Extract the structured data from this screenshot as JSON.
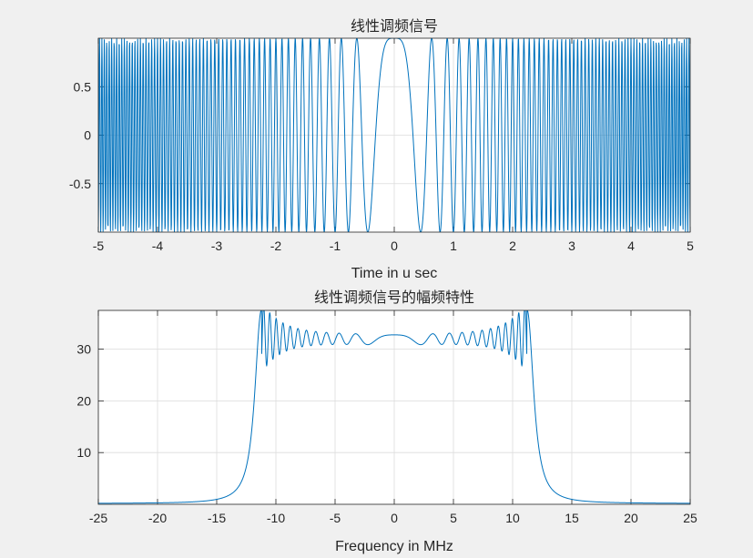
{
  "colors": {
    "figure_bg": "#f0f0f0",
    "axes_bg": "#ffffff",
    "line": "#0072bd",
    "grid": "#dcdcdc",
    "axis": "#262626"
  },
  "chart_data": [
    {
      "type": "line",
      "title": "线性调频信号",
      "xlabel": "Time in u sec",
      "ylabel": "",
      "xlim": [
        -5,
        5
      ],
      "ylim": [
        -1,
        1
      ],
      "xticks": [
        -5,
        -4,
        -3,
        -2,
        -1,
        0,
        1,
        2,
        3,
        4,
        5
      ],
      "yticks": [
        -0.5,
        0,
        0.5
      ],
      "grid": true,
      "series": [
        {
          "signal": "cos(pi*k*t^2)",
          "t_range_us": [
            -5,
            5
          ],
          "chirp_rate_mhz_per_us": 5,
          "samples": 2001
        }
      ]
    },
    {
      "type": "line",
      "title": "线性调频信号的幅频特性",
      "xlabel": "Frequency in MHz",
      "ylabel": "",
      "xlim": [
        -25,
        25
      ],
      "ylim": [
        0,
        37.5
      ],
      "xticks": [
        -25,
        -20,
        -15,
        -10,
        -5,
        0,
        5,
        10,
        15,
        20,
        25
      ],
      "yticks": [
        10,
        20,
        30
      ],
      "grid": true,
      "series": [
        {
          "description_points_freq_mhz": [
            -25,
            -20,
            -15,
            -13,
            -12,
            -11.2,
            -10.5,
            -10,
            -5,
            0,
            5,
            10,
            10.5,
            11.2,
            12,
            13,
            15,
            20,
            25
          ],
          "description_points_mag": [
            0.2,
            0.6,
            2.3,
            7,
            16,
            37.5,
            27.5,
            33,
            31.5,
            32,
            31.5,
            33,
            27.5,
            37.5,
            16,
            7,
            2.3,
            0.6,
            0.2
          ]
        }
      ]
    }
  ]
}
